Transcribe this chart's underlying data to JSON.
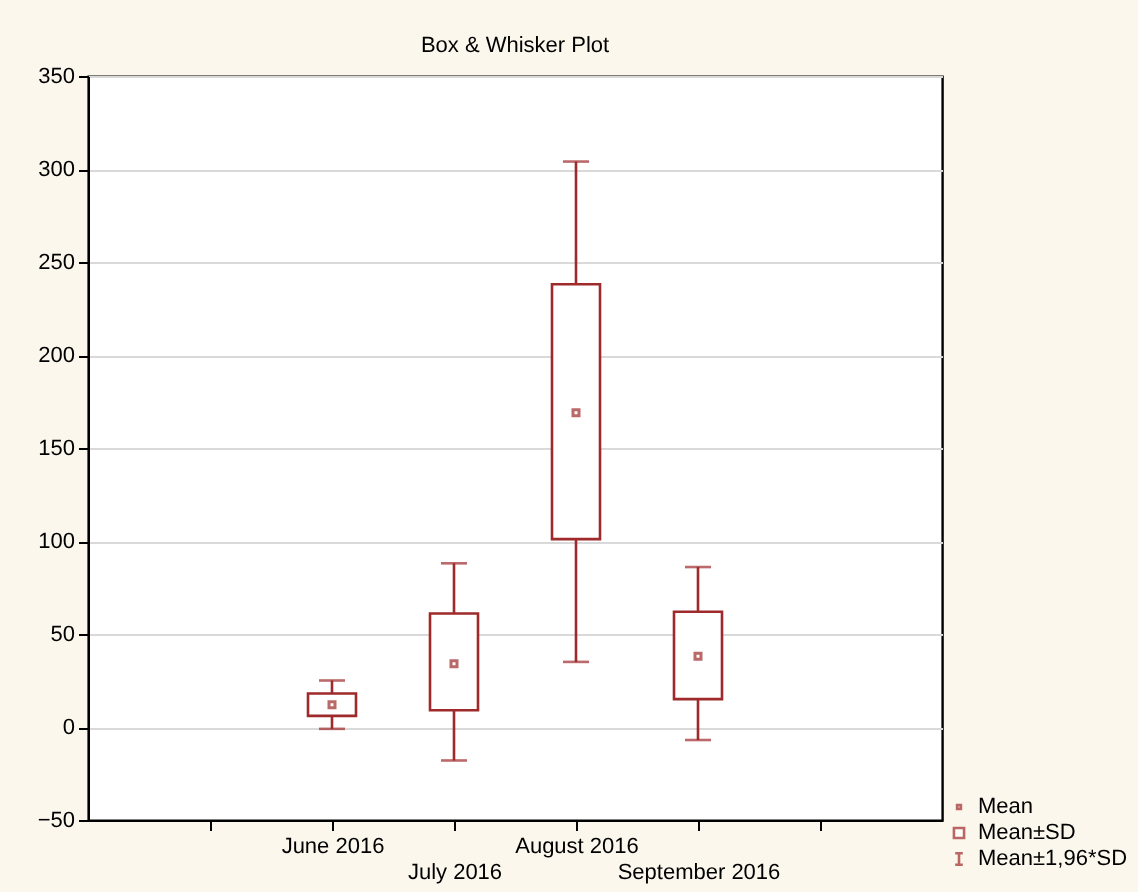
{
  "chart_data": {
    "type": "box",
    "title": "Box & Whisker Plot",
    "categories": [
      null,
      "June 2016",
      "July 2016",
      "August 2016",
      "September 2016",
      null
    ],
    "series": [
      {
        "color": "#9e2a2b",
        "boxes": [
          null,
          {
            "low": -1,
            "q1": 6,
            "q3": 18,
            "high": 25,
            "mean": 12
          },
          {
            "low": -18,
            "q1": 9,
            "q3": 61,
            "high": 88,
            "mean": 34
          },
          {
            "low": 35,
            "q1": 101,
            "q3": 238,
            "high": 304,
            "mean": 169
          },
          {
            "low": -7,
            "q1": 15,
            "q3": 62,
            "high": 86,
            "mean": 38
          },
          null
        ]
      }
    ],
    "annotations": [
      "Mean",
      "Mean±SD",
      "Mean±1,96*SD"
    ],
    "ylim": [
      -50,
      350
    ],
    "yticks": [
      -50,
      0,
      50,
      100,
      150,
      200,
      250,
      300,
      350
    ],
    "grid": "y"
  }
}
